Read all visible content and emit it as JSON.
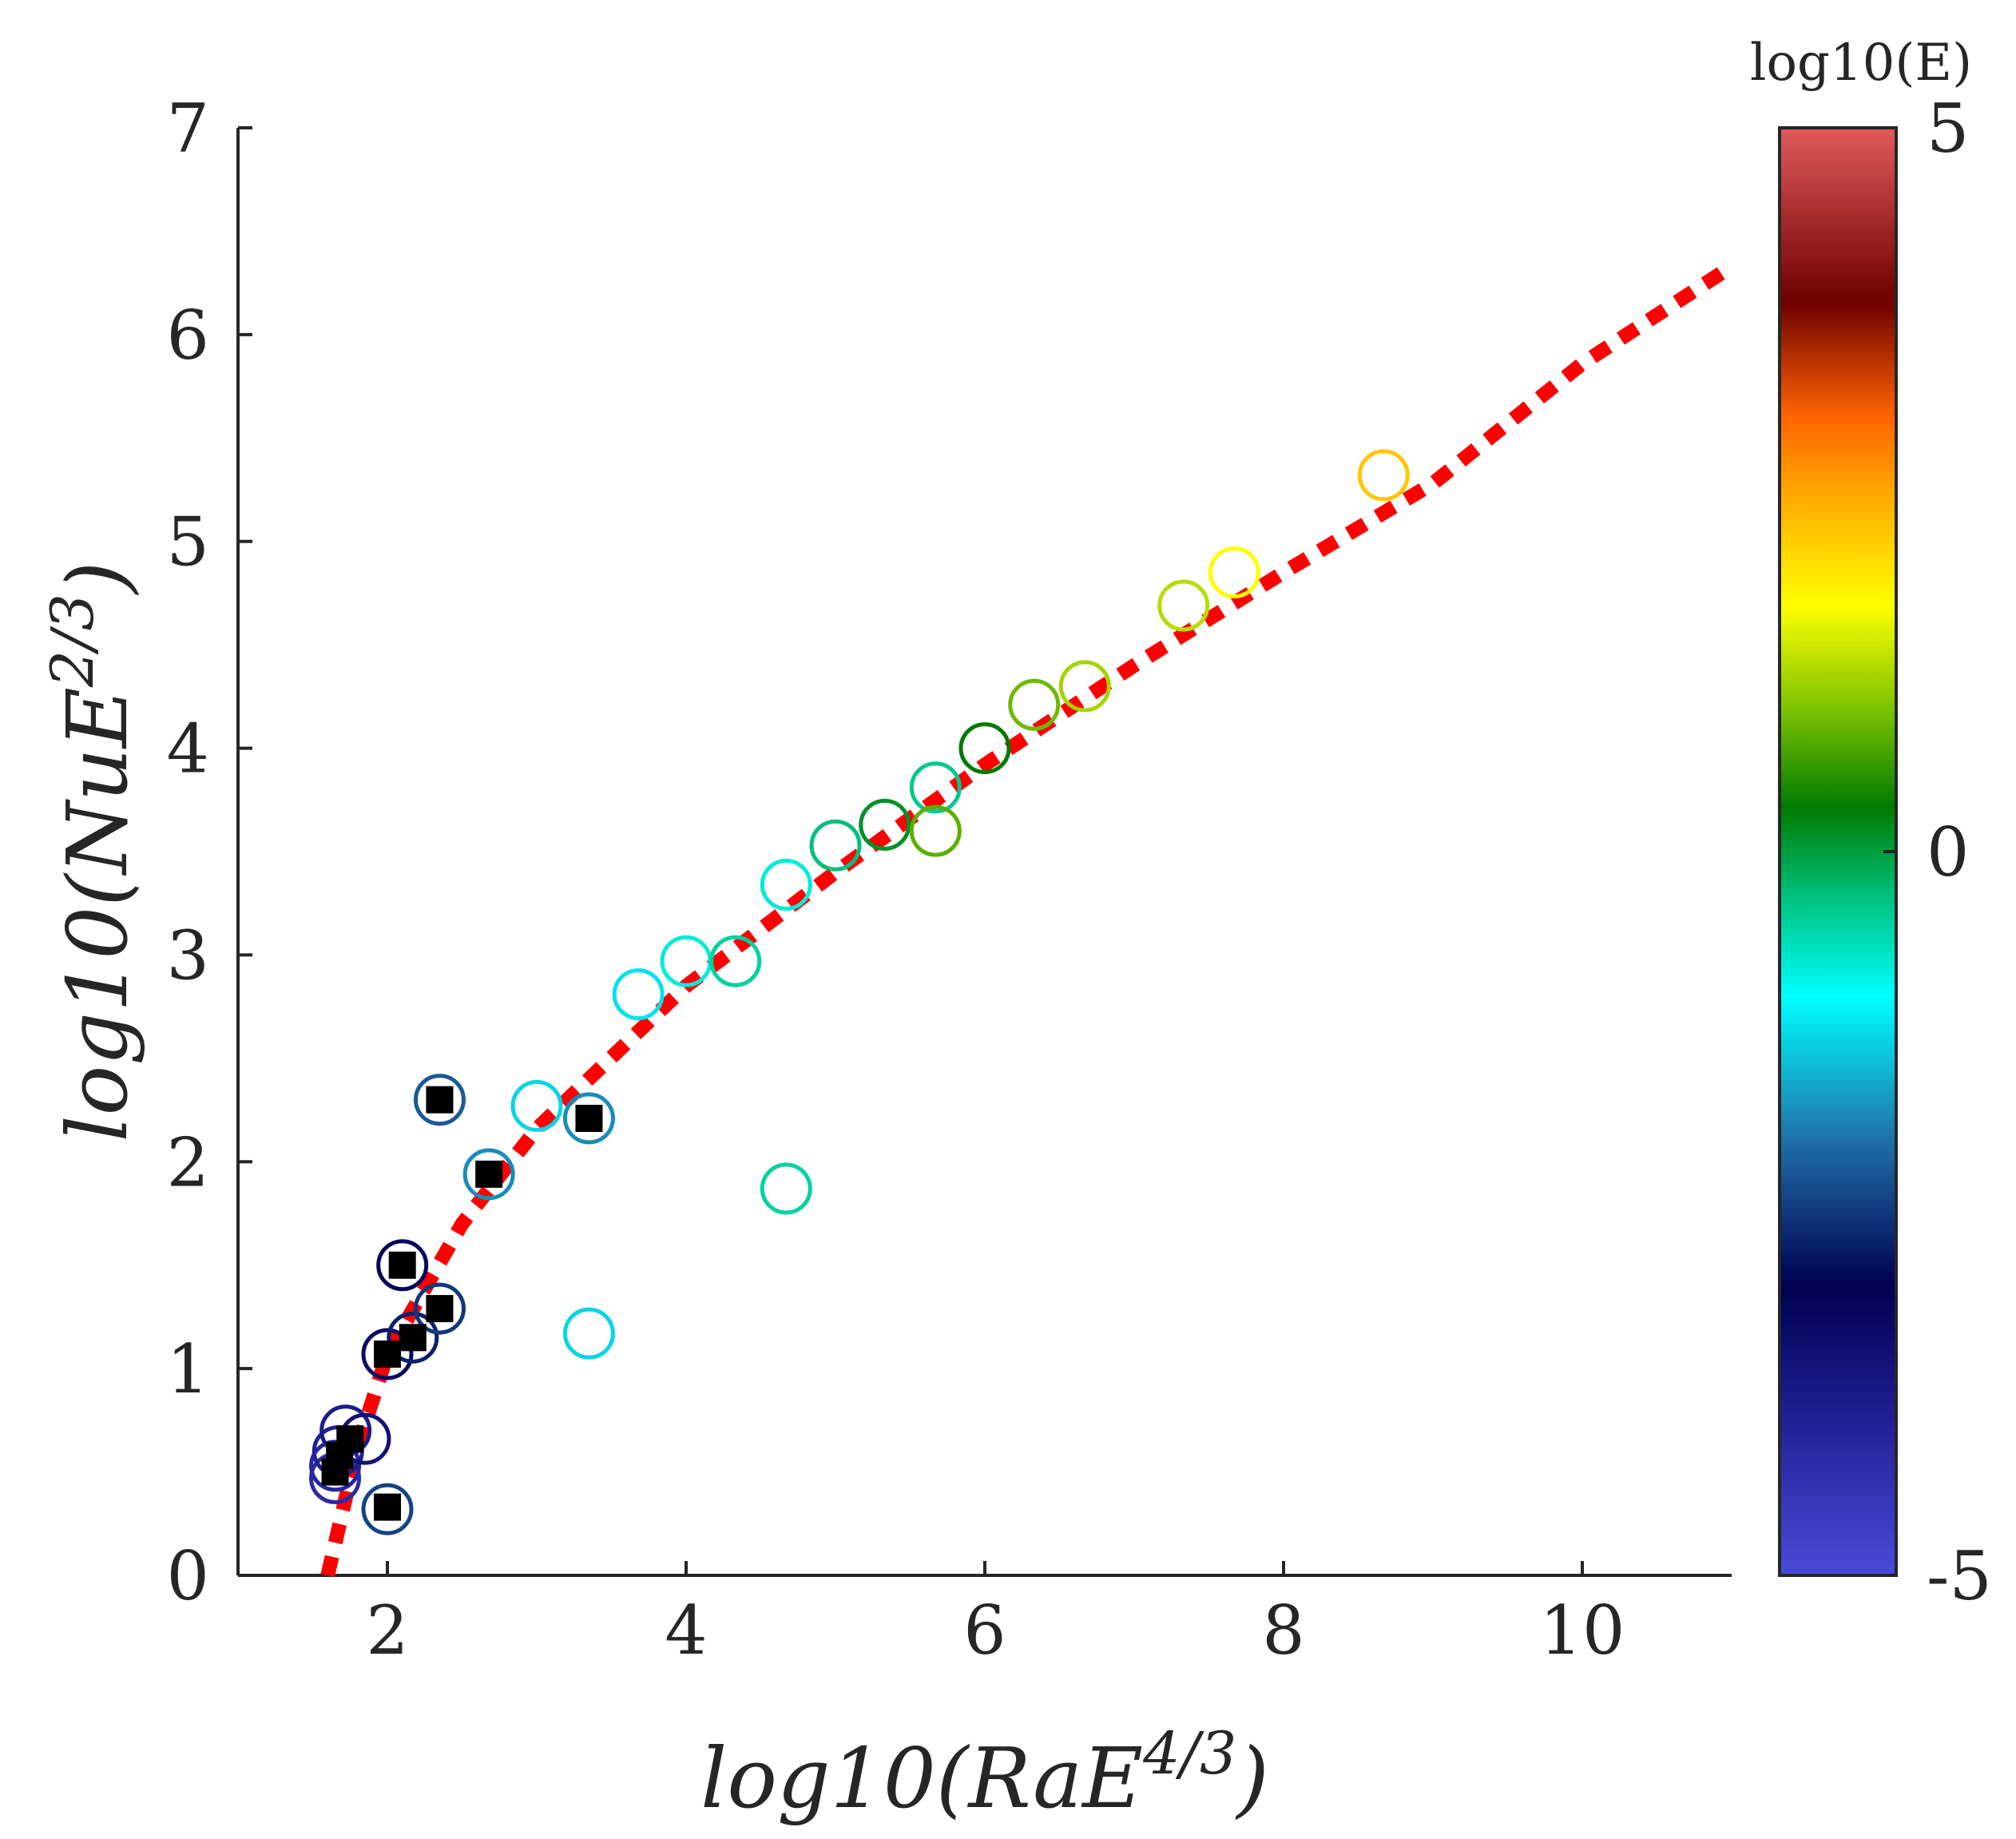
{
  "chart_data": {
    "type": "scatter",
    "xlabel": "log10(RaE^{4/3})",
    "ylabel": "log10(NuE^{2/3})",
    "xlim": [
      1,
      11
    ],
    "ylim": [
      0,
      7
    ],
    "x_ticks": [
      "2",
      "4",
      "6",
      "8",
      "10"
    ],
    "y_ticks": [
      "0",
      "1",
      "2",
      "3",
      "4",
      "5",
      "6",
      "7"
    ],
    "grid": false,
    "colorbar": {
      "title": "log10(E)",
      "range": [
        -5,
        5
      ],
      "tick_labels": [
        "5",
        "0",
        "-5"
      ],
      "colormap": "jet-like: blue, navy, teal, cyan, green, yellow, orange, red, dark red, light red"
    },
    "series": [
      {
        "marker": "circle-open",
        "color_by": "log10(E)",
        "points": [
          {
            "x": 1.65,
            "y": 0.47,
            "c": -4.2
          },
          {
            "x": 1.65,
            "y": 0.53,
            "c": -4.1
          },
          {
            "x": 1.67,
            "y": 0.6,
            "c": -3.9
          },
          {
            "x": 1.72,
            "y": 0.7,
            "c": -3.8
          },
          {
            "x": 1.85,
            "y": 0.66,
            "c": -3.5
          },
          {
            "x": 2.0,
            "y": 0.32,
            "c": -2.4
          },
          {
            "x": 2.0,
            "y": 1.07,
            "c": -3.3
          },
          {
            "x": 2.1,
            "y": 1.5,
            "c": -3.1
          },
          {
            "x": 2.17,
            "y": 1.15,
            "c": -2.7
          },
          {
            "x": 2.35,
            "y": 1.29,
            "c": -2.5
          },
          {
            "x": 2.35,
            "y": 2.3,
            "c": -2.2
          },
          {
            "x": 2.68,
            "y": 1.94,
            "c": -1.8
          },
          {
            "x": 3.0,
            "y": 2.27,
            "c": -1.3
          },
          {
            "x": 3.35,
            "y": 2.21,
            "c": -1.8
          },
          {
            "x": 3.35,
            "y": 1.17,
            "c": -1.3
          },
          {
            "x": 3.68,
            "y": 2.81,
            "c": -1.2
          },
          {
            "x": 4.0,
            "y": 2.97,
            "c": -0.8
          },
          {
            "x": 4.33,
            "y": 2.97,
            "c": -0.5
          },
          {
            "x": 4.67,
            "y": 3.34,
            "c": -0.8
          },
          {
            "x": 4.67,
            "y": 1.87,
            "c": -0.5
          },
          {
            "x": 5.0,
            "y": 3.53,
            "c": -0.3
          },
          {
            "x": 5.33,
            "y": 3.63,
            "c": 0.1
          },
          {
            "x": 5.67,
            "y": 3.81,
            "c": -0.4
          },
          {
            "x": 5.67,
            "y": 3.6,
            "c": 0.8
          },
          {
            "x": 6.0,
            "y": 4.0,
            "c": 0.3
          },
          {
            "x": 6.33,
            "y": 4.21,
            "c": 0.9
          },
          {
            "x": 6.67,
            "y": 4.3,
            "c": 1.2
          },
          {
            "x": 7.33,
            "y": 4.69,
            "c": 1.3
          },
          {
            "x": 7.67,
            "y": 4.85,
            "c": 1.7
          },
          {
            "x": 8.67,
            "y": 5.32,
            "c": 2.2
          }
        ]
      },
      {
        "marker": "square-filled",
        "color": "#000000",
        "points": [
          {
            "x": 1.65,
            "y": 0.5
          },
          {
            "x": 1.68,
            "y": 0.58
          },
          {
            "x": 1.75,
            "y": 0.66
          },
          {
            "x": 2.0,
            "y": 0.33
          },
          {
            "x": 2.0,
            "y": 1.07
          },
          {
            "x": 2.1,
            "y": 1.5
          },
          {
            "x": 2.17,
            "y": 1.15
          },
          {
            "x": 2.35,
            "y": 1.29
          },
          {
            "x": 2.35,
            "y": 2.3
          },
          {
            "x": 2.68,
            "y": 1.94
          },
          {
            "x": 3.35,
            "y": 2.21
          }
        ]
      },
      {
        "marker": "dotted-line",
        "color": "#ff0000",
        "points": [
          {
            "x": 1.6,
            "y": 0.0
          },
          {
            "x": 1.8,
            "y": 0.62
          },
          {
            "x": 2.0,
            "y": 1.07
          },
          {
            "x": 2.5,
            "y": 1.7
          },
          {
            "x": 3.0,
            "y": 2.16
          },
          {
            "x": 4.0,
            "y": 2.85
          },
          {
            "x": 5.0,
            "y": 3.4
          },
          {
            "x": 6.0,
            "y": 3.92
          },
          {
            "x": 7.0,
            "y": 4.4
          },
          {
            "x": 8.0,
            "y": 4.85
          },
          {
            "x": 9.0,
            "y": 5.28
          },
          {
            "x": 10.0,
            "y": 5.86
          },
          {
            "x": 11.0,
            "y": 6.33
          }
        ]
      }
    ]
  }
}
